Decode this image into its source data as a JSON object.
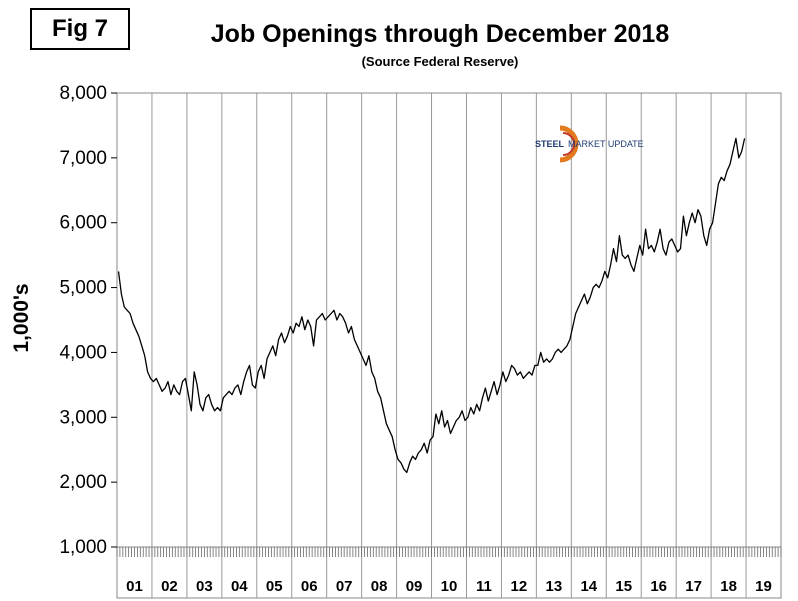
{
  "figure_label": "Fig 7",
  "chart_data": {
    "type": "line",
    "title": "Job Openings through December 2018",
    "subtitle": "(Source Federal Reserve)",
    "ylabel": "1,000's",
    "xlabel": "",
    "ylim": [
      1000,
      8000
    ],
    "yticks": [
      1000,
      2000,
      3000,
      4000,
      5000,
      6000,
      7000,
      8000
    ],
    "ytick_labels": [
      "1,000",
      "2,000",
      "3,000",
      "4,000",
      "5,000",
      "6,000",
      "7,000",
      "8,000"
    ],
    "x_categories": [
      "01",
      "02",
      "03",
      "04",
      "05",
      "06",
      "07",
      "08",
      "09",
      "10",
      "11",
      "12",
      "13",
      "14",
      "15",
      "16",
      "17",
      "18",
      "19"
    ],
    "grid": "vertical",
    "legend": "none",
    "line_color": "#000000",
    "series": [
      {
        "x_start": "2001-01",
        "frequency": "monthly",
        "values": [
          5250,
          4900,
          4700,
          4650,
          4600,
          4450,
          4350,
          4250,
          4100,
          3950,
          3700,
          3600,
          3550,
          3600,
          3500,
          3400,
          3450,
          3550,
          3350,
          3500,
          3400,
          3350,
          3550,
          3600,
          3350,
          3100,
          3700,
          3500,
          3200,
          3100,
          3300,
          3350,
          3200,
          3100,
          3150,
          3100,
          3300,
          3350,
          3400,
          3350,
          3450,
          3500,
          3350,
          3550,
          3700,
          3800,
          3500,
          3450,
          3700,
          3800,
          3600,
          3900,
          4000,
          4100,
          3950,
          4200,
          4300,
          4150,
          4250,
          4400,
          4300,
          4450,
          4400,
          4550,
          4350,
          4500,
          4400,
          4100,
          4500,
          4550,
          4600,
          4500,
          4550,
          4600,
          4650,
          4500,
          4600,
          4550,
          4450,
          4300,
          4400,
          4200,
          4100,
          4000,
          3900,
          3800,
          3950,
          3700,
          3600,
          3400,
          3300,
          3100,
          2900,
          2800,
          2700,
          2500,
          2350,
          2300,
          2200,
          2150,
          2300,
          2400,
          2350,
          2450,
          2500,
          2600,
          2450,
          2650,
          2700,
          3050,
          2900,
          3100,
          2850,
          2950,
          2750,
          2850,
          2950,
          3000,
          3100,
          2950,
          3000,
          3150,
          3050,
          3200,
          3100,
          3300,
          3450,
          3250,
          3400,
          3550,
          3350,
          3500,
          3700,
          3550,
          3650,
          3800,
          3750,
          3650,
          3700,
          3600,
          3650,
          3700,
          3650,
          3800,
          3800,
          4000,
          3850,
          3900,
          3850,
          3900,
          4000,
          4050,
          4000,
          4050,
          4100,
          4200,
          4400,
          4600,
          4700,
          4800,
          4900,
          4750,
          4850,
          5000,
          5050,
          5000,
          5100,
          5250,
          5150,
          5350,
          5600,
          5400,
          5800,
          5500,
          5450,
          5500,
          5350,
          5250,
          5450,
          5650,
          5500,
          5900,
          5600,
          5650,
          5550,
          5700,
          5900,
          5600,
          5500,
          5700,
          5750,
          5650,
          5550,
          5600,
          6100,
          5800,
          6000,
          6150,
          6000,
          6200,
          6100,
          5800,
          5650,
          5900,
          6000,
          6300,
          6600,
          6700,
          6650,
          6800,
          6900,
          7100,
          7300,
          7000,
          7100,
          7300
        ]
      }
    ]
  }
}
